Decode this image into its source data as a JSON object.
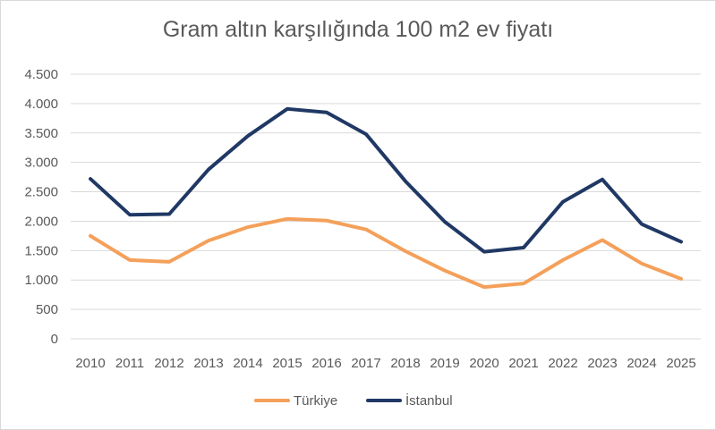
{
  "chart_data": {
    "type": "line",
    "title": "Gram altın karşılığında 100 m2 ev fiyatı",
    "xlabel": "",
    "ylabel": "",
    "categories": [
      "2010",
      "2011",
      "2012",
      "2013",
      "2014",
      "2015",
      "2016",
      "2017",
      "2018",
      "2019",
      "2020",
      "2021",
      "2022",
      "2023",
      "2024",
      "2025"
    ],
    "ylim": [
      0,
      4500
    ],
    "yticks": [
      0,
      500,
      1000,
      1500,
      2000,
      2500,
      3000,
      3500,
      4000,
      4500
    ],
    "ytick_labels": [
      "0",
      "500",
      "1.000",
      "1.500",
      "2.000",
      "2.500",
      "3.000",
      "3.500",
      "4.000",
      "4.500"
    ],
    "grid": true,
    "legend_position": "bottom",
    "series": [
      {
        "name": "Türkiye",
        "color": "#f4a05a",
        "values": [
          1750,
          1340,
          1310,
          1670,
          1900,
          2040,
          2010,
          1860,
          1490,
          1160,
          880,
          940,
          1340,
          1680,
          1280,
          1020
        ]
      },
      {
        "name": "İstanbul",
        "color": "#203864",
        "values": [
          2720,
          2110,
          2120,
          2880,
          3450,
          3910,
          3850,
          3480,
          2680,
          1990,
          1480,
          1550,
          2330,
          2710,
          1950,
          1650
        ]
      }
    ]
  }
}
